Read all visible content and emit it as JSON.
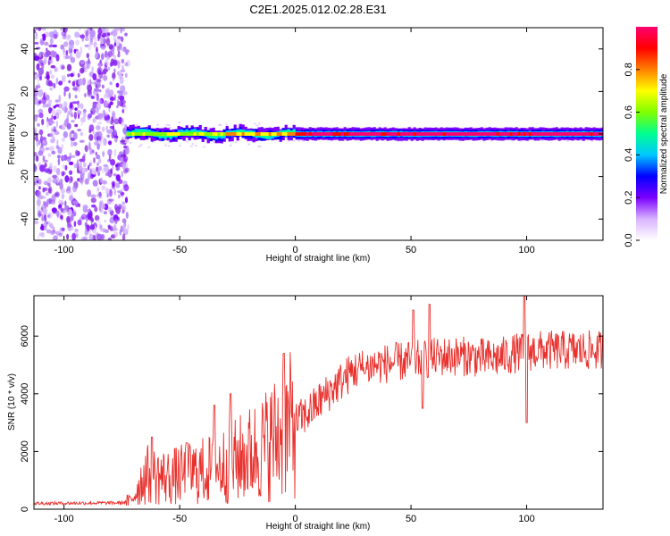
{
  "title": "C2E1.2025.012.02.28.E31",
  "chart_data": [
    {
      "type": "heatmap",
      "xlabel": "Height of straight line (km)",
      "ylabel": "Frequency (Hz)",
      "xlim": [
        -113,
        133
      ],
      "ylim": [
        -50,
        50
      ],
      "xticks": [
        -100,
        -50,
        0,
        50,
        100
      ],
      "yticks": [
        -40,
        -20,
        0,
        20,
        40
      ],
      "noise_region_end_km": -73,
      "signal_frequency_hz": 0,
      "colorbar": {
        "label": "Normalized spectral amplitude",
        "range": [
          0,
          1
        ],
        "ticks": [
          0.0,
          0.2,
          0.4,
          0.6,
          0.8
        ],
        "tick_labels": [
          "0.0",
          "0.2",
          "0.4",
          "0.6",
          "0.8"
        ],
        "colors": [
          "#ffffff",
          "#d9b3ff",
          "#7a00ff",
          "#0000ff",
          "#00c8ff",
          "#00ff90",
          "#80ff00",
          "#ffff00",
          "#ff8000",
          "#ff0000",
          "#ff0070"
        ]
      }
    },
    {
      "type": "line",
      "xlabel": "Height of straight line (km)",
      "ylabel": "SNR (10 * v/v)",
      "xlim": [
        -113,
        133
      ],
      "ylim": [
        0,
        7400
      ],
      "xticks": [
        -100,
        -50,
        0,
        50,
        100
      ],
      "yticks": [
        0,
        2000,
        4000,
        6000
      ],
      "color": "#e8302c",
      "profile_x": [
        -113,
        -75,
        -71,
        -65,
        -55,
        -45,
        -35,
        -25,
        -15,
        -5,
        5,
        15,
        25,
        35,
        45,
        55,
        65,
        75,
        85,
        95,
        105,
        115,
        125,
        133
      ],
      "profile_y": [
        200,
        220,
        300,
        1200,
        1100,
        1250,
        1400,
        1700,
        2100,
        2700,
        3300,
        4100,
        4800,
        5000,
        5100,
        5200,
        5300,
        5300,
        5200,
        5400,
        5500,
        5500,
        5500,
        5500
      ],
      "spikes": [
        {
          "x": -62,
          "y": 2500
        },
        {
          "x": -47,
          "y": 2300
        },
        {
          "x": -35,
          "y": 3600
        },
        {
          "x": -28,
          "y": 4000
        },
        {
          "x": -5,
          "y": 5400
        },
        {
          "x": 30,
          "y": 4700
        },
        {
          "x": 51,
          "y": 6900
        },
        {
          "x": 55,
          "y": 3500
        },
        {
          "x": 58,
          "y": 7100
        },
        {
          "x": 99,
          "y": 7400
        },
        {
          "x": 100,
          "y": 3000
        }
      ]
    }
  ]
}
